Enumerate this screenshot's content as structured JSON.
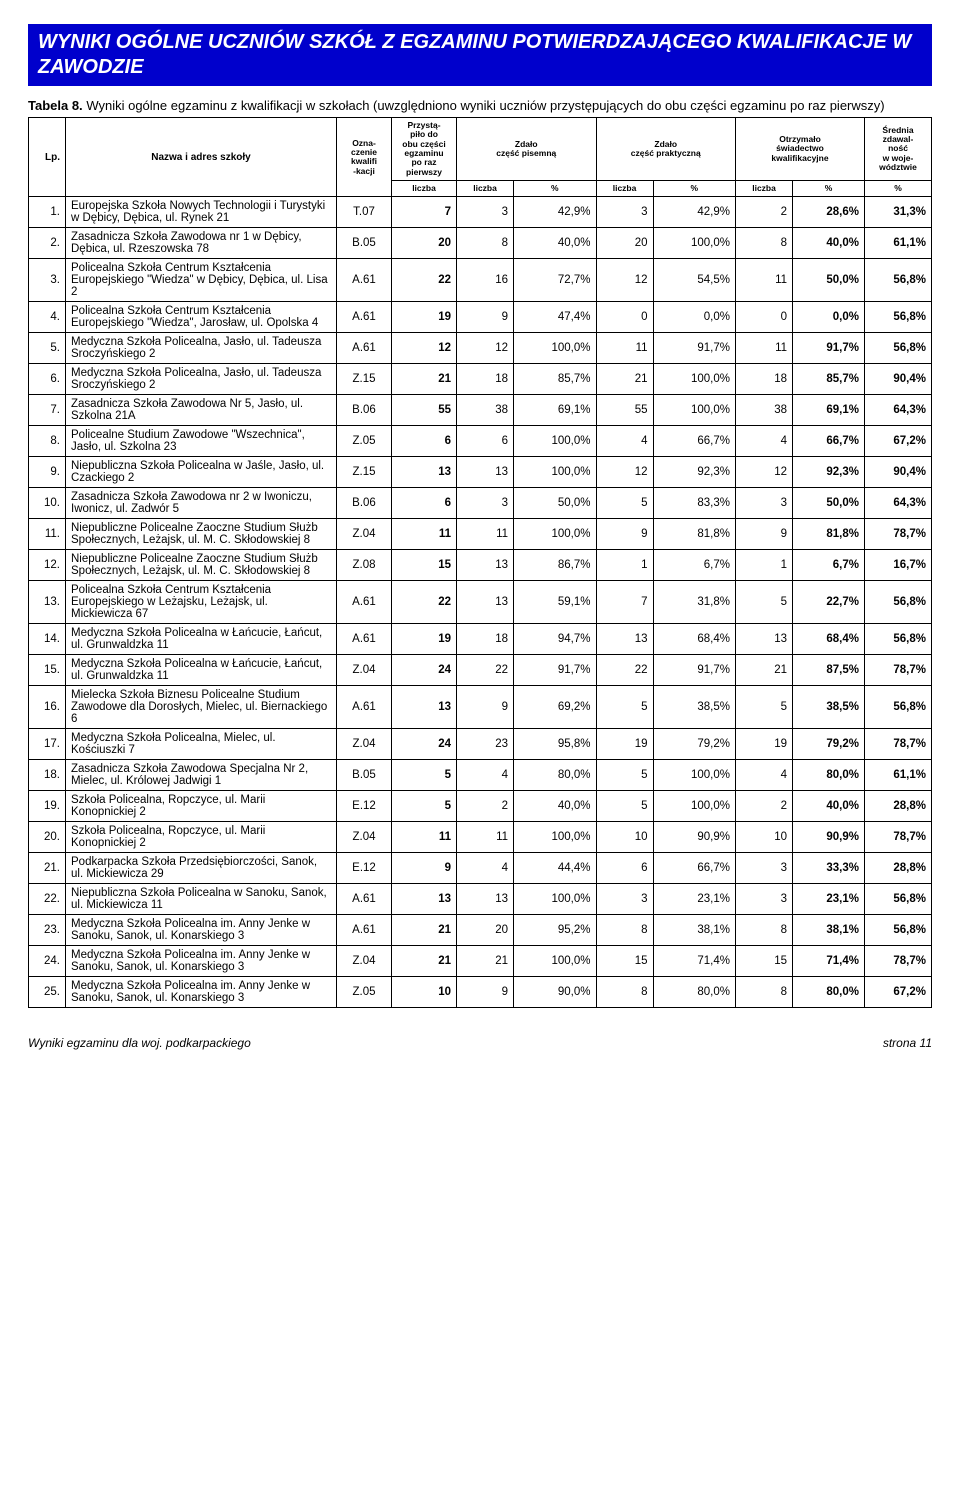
{
  "title": "WYNIKI OGÓLNE UCZNIÓW SZKÓŁ Z EGZAMINU POTWIERDZAJĄCEGO KWALIFIKACJE W ZAWODZIE",
  "subtitle_label": "Tabela 8.",
  "subtitle_text": "Wyniki ogólne egzaminu z kwalifikacji w szkołach (uwzględniono wyniki uczniów przystępujących do obu części egzaminu po raz pierwszy)",
  "headers": {
    "lp": "Lp.",
    "name": "Nazwa i adres szkoły",
    "code": "Ozna-\nczenie\nkwalifi\n-kacji",
    "took": "Przystą-\npiło do\nobu części\negzaminu\npo raz\npierwszy",
    "written": "Zdało\nczęść pisemną",
    "practical": "Zdało\nczęść praktyczną",
    "cert": "Otrzymało\nświadectwo\nkwalifikacyjne",
    "avg": "Średnia\nzdawal-\nność\nw woje-\nwództwie",
    "liczba": "liczba",
    "pct": "%"
  },
  "rows": [
    {
      "lp": "1.",
      "name": "Europejska Szkoła Nowych Technologii i Turystyki w Dębicy, Dębica, ul. Rynek 21",
      "code": "T.07",
      "took": "7",
      "wl": "3",
      "wp": "42,9%",
      "pl": "3",
      "pp": "42,9%",
      "cl": "2",
      "cp": "28,6%",
      "avg": "31,3%"
    },
    {
      "lp": "2.",
      "name": "Zasadnicza Szkoła Zawodowa nr 1 w Dębicy, Dębica, ul. Rzeszowska 78",
      "code": "B.05",
      "took": "20",
      "wl": "8",
      "wp": "40,0%",
      "pl": "20",
      "pp": "100,0%",
      "cl": "8",
      "cp": "40,0%",
      "avg": "61,1%"
    },
    {
      "lp": "3.",
      "name": "Policealna Szkoła Centrum Kształcenia Europejskiego \"Wiedza\" w Dębicy, Dębica, ul. Lisa 2",
      "code": "A.61",
      "took": "22",
      "wl": "16",
      "wp": "72,7%",
      "pl": "12",
      "pp": "54,5%",
      "cl": "11",
      "cp": "50,0%",
      "avg": "56,8%"
    },
    {
      "lp": "4.",
      "name": "Policealna Szkoła Centrum Kształcenia Europejskiego \"Wiedza\", Jarosław, ul. Opolska 4",
      "code": "A.61",
      "took": "19",
      "wl": "9",
      "wp": "47,4%",
      "pl": "0",
      "pp": "0,0%",
      "cl": "0",
      "cp": "0,0%",
      "avg": "56,8%"
    },
    {
      "lp": "5.",
      "name": "Medyczna Szkoła Policealna, Jasło, ul. Tadeusza Sroczyńskiego 2",
      "code": "A.61",
      "took": "12",
      "wl": "12",
      "wp": "100,0%",
      "pl": "11",
      "pp": "91,7%",
      "cl": "11",
      "cp": "91,7%",
      "avg": "56,8%"
    },
    {
      "lp": "6.",
      "name": "Medyczna Szkoła Policealna, Jasło, ul. Tadeusza Sroczyńskiego 2",
      "code": "Z.15",
      "took": "21",
      "wl": "18",
      "wp": "85,7%",
      "pl": "21",
      "pp": "100,0%",
      "cl": "18",
      "cp": "85,7%",
      "avg": "90,4%"
    },
    {
      "lp": "7.",
      "name": "Zasadnicza Szkoła Zawodowa Nr 5, Jasło, ul. Szkolna 21A",
      "code": "B.06",
      "took": "55",
      "wl": "38",
      "wp": "69,1%",
      "pl": "55",
      "pp": "100,0%",
      "cl": "38",
      "cp": "69,1%",
      "avg": "64,3%"
    },
    {
      "lp": "8.",
      "name": "Policealne Studium Zawodowe \"Wszechnica\", Jasło, ul. Szkolna 23",
      "code": "Z.05",
      "took": "6",
      "wl": "6",
      "wp": "100,0%",
      "pl": "4",
      "pp": "66,7%",
      "cl": "4",
      "cp": "66,7%",
      "avg": "67,2%"
    },
    {
      "lp": "9.",
      "name": "Niepubliczna Szkoła Policealna w Jaśle, Jasło, ul. Czackiego 2",
      "code": "Z.15",
      "took": "13",
      "wl": "13",
      "wp": "100,0%",
      "pl": "12",
      "pp": "92,3%",
      "cl": "12",
      "cp": "92,3%",
      "avg": "90,4%"
    },
    {
      "lp": "10.",
      "name": "Zasadnicza Szkoła Zawodowa nr 2 w Iwoniczu, Iwonicz, ul. Zadwór 5",
      "code": "B.06",
      "took": "6",
      "wl": "3",
      "wp": "50,0%",
      "pl": "5",
      "pp": "83,3%",
      "cl": "3",
      "cp": "50,0%",
      "avg": "64,3%"
    },
    {
      "lp": "11.",
      "name": "Niepubliczne Policealne Zaoczne Studium Służb Społecznych, Leżajsk, ul. M. C. Skłodowskiej 8",
      "code": "Z.04",
      "took": "11",
      "wl": "11",
      "wp": "100,0%",
      "pl": "9",
      "pp": "81,8%",
      "cl": "9",
      "cp": "81,8%",
      "avg": "78,7%"
    },
    {
      "lp": "12.",
      "name": "Niepubliczne Policealne Zaoczne Studium Służb Społecznych, Leżajsk, ul. M. C. Skłodowskiej 8",
      "code": "Z.08",
      "took": "15",
      "wl": "13",
      "wp": "86,7%",
      "pl": "1",
      "pp": "6,7%",
      "cl": "1",
      "cp": "6,7%",
      "avg": "16,7%"
    },
    {
      "lp": "13.",
      "name": "Policealna Szkoła Centrum Kształcenia Europejskiego w Leżajsku, Leżajsk, ul. Mickiewicza 67",
      "code": "A.61",
      "took": "22",
      "wl": "13",
      "wp": "59,1%",
      "pl": "7",
      "pp": "31,8%",
      "cl": "5",
      "cp": "22,7%",
      "avg": "56,8%"
    },
    {
      "lp": "14.",
      "name": "Medyczna Szkoła Policealna w Łańcucie, Łańcut, ul. Grunwaldzka 11",
      "code": "A.61",
      "took": "19",
      "wl": "18",
      "wp": "94,7%",
      "pl": "13",
      "pp": "68,4%",
      "cl": "13",
      "cp": "68,4%",
      "avg": "56,8%"
    },
    {
      "lp": "15.",
      "name": "Medyczna Szkoła Policealna w Łańcucie, Łańcut, ul. Grunwaldzka 11",
      "code": "Z.04",
      "took": "24",
      "wl": "22",
      "wp": "91,7%",
      "pl": "22",
      "pp": "91,7%",
      "cl": "21",
      "cp": "87,5%",
      "avg": "78,7%"
    },
    {
      "lp": "16.",
      "name": "Mielecka Szkoła Biznesu Policealne Studium Zawodowe dla Dorosłych, Mielec, ul. Biernackiego 6",
      "code": "A.61",
      "took": "13",
      "wl": "9",
      "wp": "69,2%",
      "pl": "5",
      "pp": "38,5%",
      "cl": "5",
      "cp": "38,5%",
      "avg": "56,8%"
    },
    {
      "lp": "17.",
      "name": "Medyczna Szkoła Policealna, Mielec, ul. Kościuszki 7",
      "code": "Z.04",
      "took": "24",
      "wl": "23",
      "wp": "95,8%",
      "pl": "19",
      "pp": "79,2%",
      "cl": "19",
      "cp": "79,2%",
      "avg": "78,7%"
    },
    {
      "lp": "18.",
      "name": "Zasadnicza Szkoła Zawodowa Specjalna Nr 2, Mielec, ul. Królowej Jadwigi 1",
      "code": "B.05",
      "took": "5",
      "wl": "4",
      "wp": "80,0%",
      "pl": "5",
      "pp": "100,0%",
      "cl": "4",
      "cp": "80,0%",
      "avg": "61,1%"
    },
    {
      "lp": "19.",
      "name": "Szkoła Policealna, Ropczyce, ul. Marii Konopnickiej 2",
      "code": "E.12",
      "took": "5",
      "wl": "2",
      "wp": "40,0%",
      "pl": "5",
      "pp": "100,0%",
      "cl": "2",
      "cp": "40,0%",
      "avg": "28,8%"
    },
    {
      "lp": "20.",
      "name": "Szkoła Policealna, Ropczyce, ul. Marii Konopnickiej 2",
      "code": "Z.04",
      "took": "11",
      "wl": "11",
      "wp": "100,0%",
      "pl": "10",
      "pp": "90,9%",
      "cl": "10",
      "cp": "90,9%",
      "avg": "78,7%"
    },
    {
      "lp": "21.",
      "name": "Podkarpacka Szkoła Przedsiębiorczości, Sanok, ul. Mickiewicza 29",
      "code": "E.12",
      "took": "9",
      "wl": "4",
      "wp": "44,4%",
      "pl": "6",
      "pp": "66,7%",
      "cl": "3",
      "cp": "33,3%",
      "avg": "28,8%"
    },
    {
      "lp": "22.",
      "name": "Niepubliczna Szkoła Policealna w Sanoku, Sanok, ul. Mickiewicza 11",
      "code": "A.61",
      "took": "13",
      "wl": "13",
      "wp": "100,0%",
      "pl": "3",
      "pp": "23,1%",
      "cl": "3",
      "cp": "23,1%",
      "avg": "56,8%"
    },
    {
      "lp": "23.",
      "name": "Medyczna Szkoła Policealna im. Anny Jenke w Sanoku, Sanok, ul. Konarskiego 3",
      "code": "A.61",
      "took": "21",
      "wl": "20",
      "wp": "95,2%",
      "pl": "8",
      "pp": "38,1%",
      "cl": "8",
      "cp": "38,1%",
      "avg": "56,8%"
    },
    {
      "lp": "24.",
      "name": "Medyczna Szkoła Policealna im. Anny Jenke w Sanoku, Sanok, ul. Konarskiego 3",
      "code": "Z.04",
      "took": "21",
      "wl": "21",
      "wp": "100,0%",
      "pl": "15",
      "pp": "71,4%",
      "cl": "15",
      "cp": "71,4%",
      "avg": "78,7%"
    },
    {
      "lp": "25.",
      "name": "Medyczna Szkoła Policealna im. Anny Jenke w Sanoku, Sanok, ul. Konarskiego 3",
      "code": "Z.05",
      "took": "10",
      "wl": "9",
      "wp": "90,0%",
      "pl": "8",
      "pp": "80,0%",
      "cl": "8",
      "cp": "80,0%",
      "avg": "67,2%"
    }
  ],
  "footer_left": "Wyniki egzaminu dla woj. podkarpackiego",
  "footer_right": "strona 11"
}
